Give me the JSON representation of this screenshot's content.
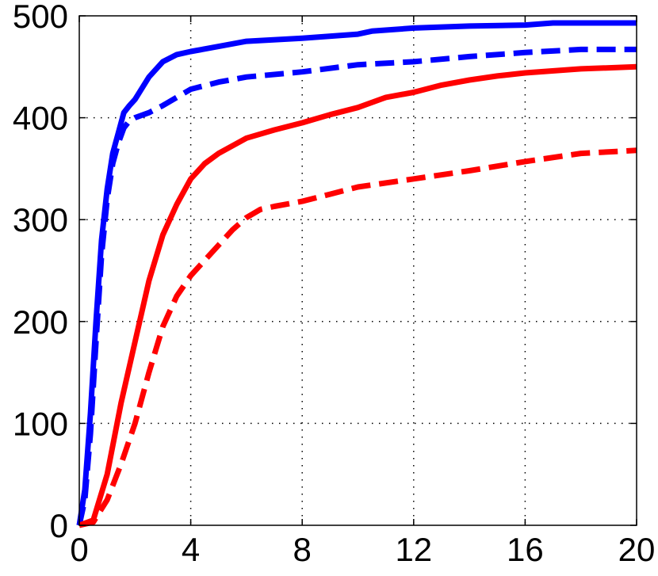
{
  "chart_data": {
    "type": "line",
    "title": "",
    "xlabel": "",
    "ylabel": "",
    "xlim": [
      0,
      20
    ],
    "ylim": [
      0,
      500
    ],
    "xticks": [
      0,
      4,
      8,
      12,
      16,
      20
    ],
    "yticks": [
      0,
      100,
      200,
      300,
      400,
      500
    ],
    "grid": true,
    "legend": "none",
    "series": [
      {
        "color": "#0000ff",
        "style": "solid",
        "x": [
          0,
          0.2,
          0.4,
          0.6,
          0.8,
          1.0,
          1.2,
          1.4,
          1.6,
          1.8,
          2.0,
          2.5,
          3.0,
          3.5,
          4.0,
          5.0,
          6.0,
          8.0,
          10.0,
          10.5,
          12.0,
          14.0,
          16.0,
          17.0,
          20.0
        ],
        "y": [
          0,
          35,
          110,
          200,
          280,
          330,
          365,
          385,
          405,
          412,
          418,
          440,
          455,
          462,
          465,
          470,
          475,
          478,
          482,
          485,
          488,
          490,
          491,
          493,
          493
        ]
      },
      {
        "color": "#0000ff",
        "style": "dashed",
        "x": [
          0,
          0.2,
          0.4,
          0.6,
          0.8,
          1.0,
          1.2,
          1.4,
          1.6,
          1.8,
          2.0,
          2.5,
          3.0,
          3.5,
          4.0,
          5.0,
          6.0,
          8.0,
          10.0,
          12.0,
          14.0,
          16.0,
          18.0,
          20.0
        ],
        "y": [
          0,
          25,
          90,
          180,
          265,
          320,
          355,
          375,
          390,
          397,
          400,
          405,
          412,
          420,
          428,
          435,
          440,
          445,
          452,
          455,
          460,
          464,
          467,
          467
        ]
      },
      {
        "color": "#ff0000",
        "style": "solid",
        "x": [
          0,
          0.5,
          1.0,
          1.5,
          2.0,
          2.5,
          3.0,
          3.5,
          4.0,
          4.5,
          5.0,
          6.0,
          7.0,
          8.0,
          9.0,
          10.0,
          11.0,
          12.0,
          13.0,
          14.0,
          15.0,
          16.0,
          18.0,
          20.0
        ],
        "y": [
          0,
          5,
          50,
          120,
          180,
          240,
          285,
          315,
          340,
          355,
          365,
          380,
          388,
          395,
          403,
          410,
          420,
          425,
          432,
          437,
          441,
          444,
          448,
          450
        ]
      },
      {
        "color": "#ff0000",
        "style": "dashed",
        "x": [
          0,
          0.5,
          1.0,
          1.5,
          2.0,
          2.5,
          3.0,
          3.5,
          4.0,
          4.5,
          5.0,
          5.5,
          6.0,
          6.5,
          7.0,
          8.0,
          9.0,
          10.0,
          12.0,
          14.0,
          16.0,
          18.0,
          20.0
        ],
        "y": [
          0,
          3,
          25,
          60,
          100,
          150,
          195,
          225,
          245,
          260,
          275,
          290,
          302,
          310,
          313,
          318,
          325,
          332,
          340,
          348,
          357,
          365,
          368
        ]
      }
    ]
  }
}
